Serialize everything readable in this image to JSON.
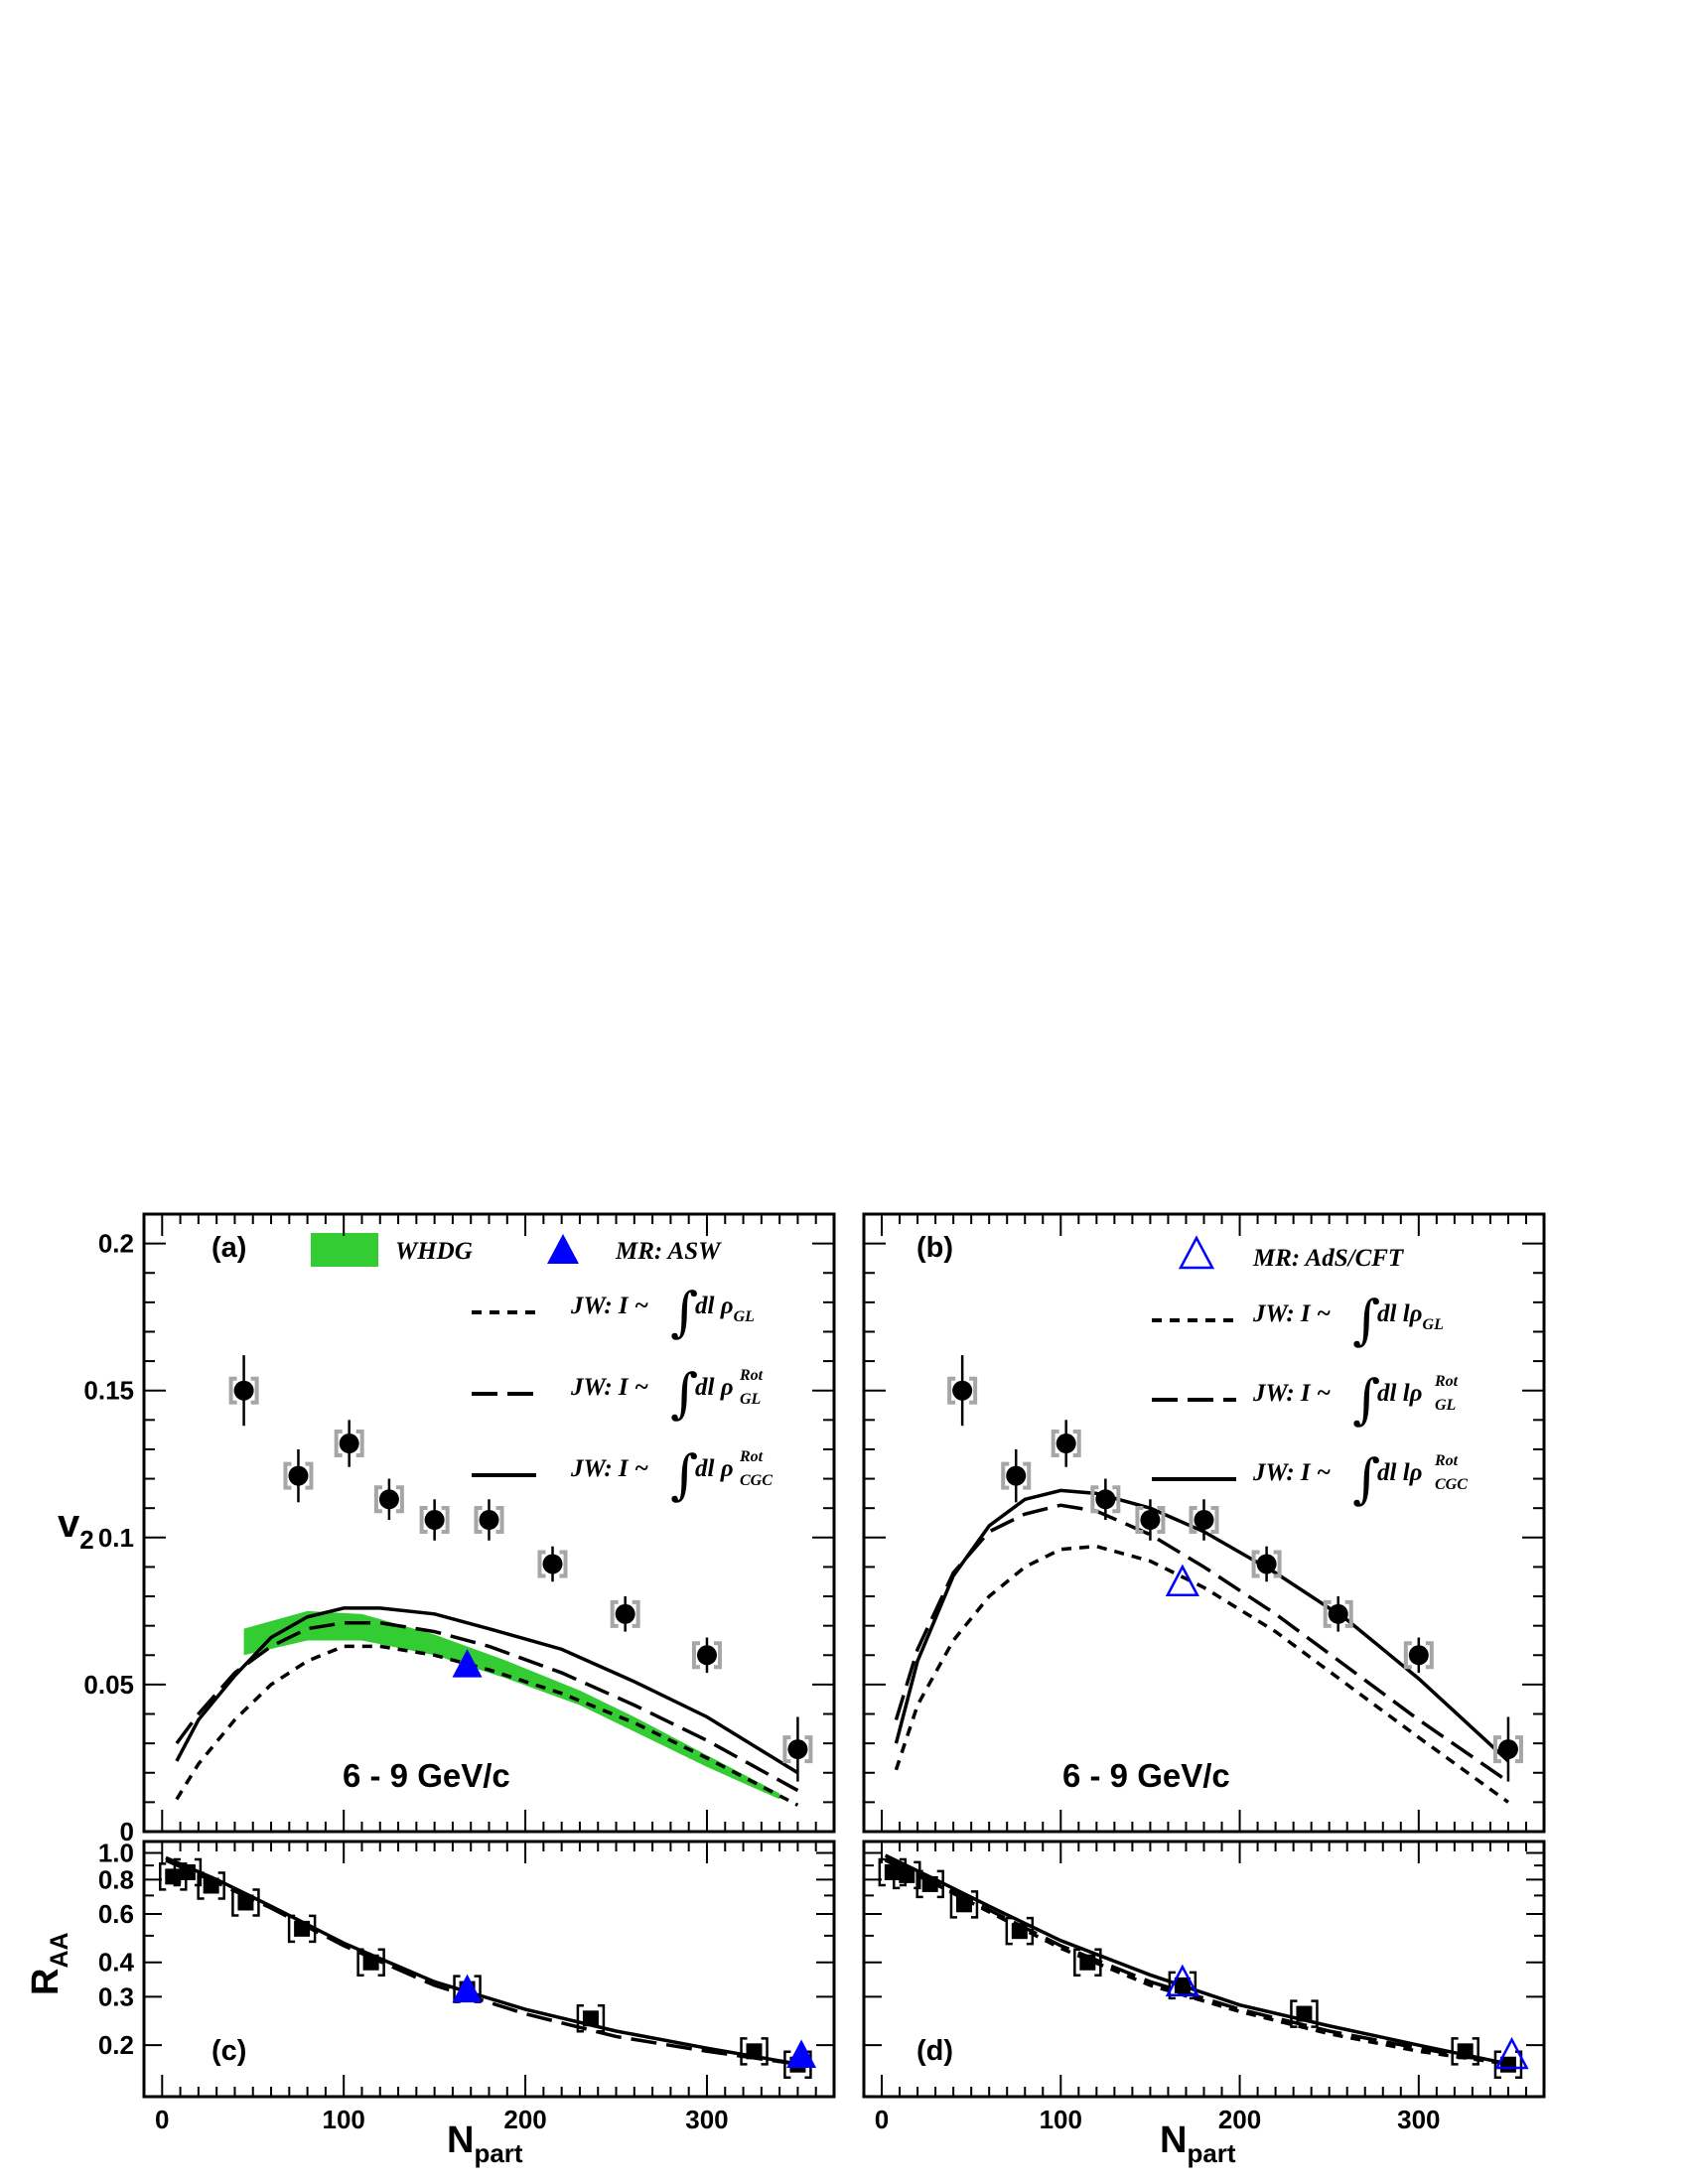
{
  "chart_data": [
    {
      "panel": "(a)",
      "type": "scatter",
      "ylabel_main": "v",
      "ylabel_sub": "2",
      "xlim": [
        -10,
        370
      ],
      "ylim": [
        0,
        0.21
      ],
      "yticks": [
        0,
        0.05,
        0.1,
        0.15,
        0.2
      ],
      "ytick_labels": [
        "0",
        "0.05",
        "0.1",
        "0.15",
        "0.2"
      ],
      "annotation": "6 - 9 GeV/c",
      "data": {
        "name": "data",
        "x": [
          45,
          75,
          103,
          125,
          150,
          180,
          215,
          255,
          300,
          350
        ],
        "y": [
          0.15,
          0.121,
          0.132,
          0.113,
          0.106,
          0.106,
          0.091,
          0.074,
          0.06,
          0.028
        ],
        "yerr": [
          0.012,
          0.009,
          0.008,
          0.007,
          0.007,
          0.007,
          0.006,
          0.006,
          0.006,
          0.011
        ],
        "color": "#000000",
        "syst_color": "#a6a6a6"
      },
      "band": {
        "name": "WHDG",
        "color": "#33cc33",
        "x": [
          45,
          80,
          110,
          150,
          190,
          230,
          260,
          300,
          340
        ],
        "lo": [
          0.06,
          0.065,
          0.065,
          0.06,
          0.052,
          0.043,
          0.034,
          0.022,
          0.011
        ],
        "hi": [
          0.069,
          0.075,
          0.074,
          0.067,
          0.058,
          0.048,
          0.039,
          0.026,
          0.013
        ]
      },
      "markers": [
        {
          "name": "MR: ASW",
          "x": [
            168
          ],
          "y": [
            0.057
          ],
          "style": "filled-triangle",
          "color": "#0000ff"
        }
      ],
      "curves": [
        {
          "name": "dashed",
          "dash": "short",
          "x": [
            8,
            20,
            40,
            60,
            80,
            100,
            120,
            150,
            180,
            220,
            260,
            300,
            350
          ],
          "y": [
            0.011,
            0.023,
            0.038,
            0.05,
            0.058,
            0.063,
            0.063,
            0.06,
            0.055,
            0.047,
            0.037,
            0.025,
            0.009
          ]
        },
        {
          "name": "long-dashed",
          "dash": "long",
          "x": [
            8,
            20,
            40,
            60,
            80,
            100,
            120,
            150,
            180,
            220,
            260,
            300,
            350
          ],
          "y": [
            0.03,
            0.04,
            0.054,
            0.063,
            0.069,
            0.071,
            0.071,
            0.068,
            0.063,
            0.054,
            0.043,
            0.031,
            0.014
          ]
        },
        {
          "name": "solid",
          "dash": "solid",
          "x": [
            8,
            20,
            40,
            60,
            80,
            100,
            120,
            150,
            180,
            220,
            260,
            300,
            350
          ],
          "y": [
            0.024,
            0.038,
            0.053,
            0.066,
            0.073,
            0.076,
            0.076,
            0.074,
            0.069,
            0.062,
            0.051,
            0.039,
            0.02
          ]
        }
      ]
    },
    {
      "panel": "(b)",
      "type": "scatter",
      "xlim": [
        -10,
        370
      ],
      "ylim": [
        0,
        0.21
      ],
      "annotation": "6 - 9 GeV/c",
      "data": {
        "name": "data",
        "x": [
          45,
          75,
          103,
          125,
          150,
          180,
          215,
          255,
          300,
          350
        ],
        "y": [
          0.15,
          0.121,
          0.132,
          0.113,
          0.106,
          0.106,
          0.091,
          0.074,
          0.06,
          0.028
        ],
        "yerr": [
          0.012,
          0.009,
          0.008,
          0.007,
          0.007,
          0.007,
          0.006,
          0.006,
          0.006,
          0.011
        ],
        "color": "#000000",
        "syst_color": "#a6a6a6"
      },
      "markers": [
        {
          "name": "MR: AdS/CFT",
          "x": [
            168
          ],
          "y": [
            0.085
          ],
          "style": "open-triangle",
          "color": "#0000ff"
        }
      ],
      "curves": [
        {
          "name": "dashed",
          "dash": "short",
          "x": [
            8,
            20,
            40,
            60,
            80,
            100,
            120,
            150,
            180,
            220,
            260,
            300,
            350
          ],
          "y": [
            0.021,
            0.043,
            0.065,
            0.08,
            0.09,
            0.096,
            0.097,
            0.092,
            0.083,
            0.068,
            0.05,
            0.032,
            0.01
          ]
        },
        {
          "name": "long-dashed",
          "dash": "long",
          "x": [
            8,
            20,
            40,
            60,
            80,
            100,
            120,
            150,
            180,
            220,
            260,
            300,
            350
          ],
          "y": [
            0.038,
            0.062,
            0.088,
            0.102,
            0.108,
            0.111,
            0.109,
            0.101,
            0.09,
            0.074,
            0.056,
            0.038,
            0.017
          ]
        },
        {
          "name": "solid",
          "dash": "solid",
          "x": [
            8,
            20,
            40,
            60,
            80,
            100,
            120,
            150,
            180,
            220,
            260,
            300,
            350
          ],
          "y": [
            0.03,
            0.058,
            0.087,
            0.104,
            0.113,
            0.116,
            0.115,
            0.11,
            0.102,
            0.088,
            0.072,
            0.052,
            0.024
          ]
        }
      ]
    },
    {
      "panel": "(c)",
      "type": "scatter",
      "ylabel_main": "R",
      "ylabel_sub": "AA",
      "xlabel_main": "N",
      "xlabel_sub": "part",
      "log_y": true,
      "xlim": [
        -10,
        370
      ],
      "ylim": [
        0.13,
        1.1
      ],
      "yticks": [
        0.2,
        0.3,
        0.4,
        0.6,
        0.8,
        1.0
      ],
      "ytick_labels": [
        "0.2",
        "0.3",
        "0.4",
        "0.6",
        "0.8",
        "1.0"
      ],
      "xticks": [
        0,
        100,
        200,
        300
      ],
      "xtick_labels": [
        "0",
        "100",
        "200",
        "300"
      ],
      "data": {
        "name": "data",
        "x": [
          6,
          14,
          27,
          46,
          77,
          115,
          168,
          236,
          326,
          350
        ],
        "y": [
          0.82,
          0.85,
          0.76,
          0.66,
          0.53,
          0.4,
          0.32,
          0.25,
          0.19,
          0.17
        ],
        "color": "#000000"
      },
      "markers": [
        {
          "name": "MR: ASW",
          "x": [
            168,
            352
          ],
          "y": [
            0.32,
            0.185
          ],
          "style": "filled-triangle",
          "color": "#0000ff"
        }
      ],
      "curves": [
        {
          "name": "solid",
          "dash": "solid",
          "x": [
            2,
            30,
            60,
            100,
            150,
            200,
            250,
            300,
            352
          ],
          "y": [
            0.96,
            0.8,
            0.64,
            0.47,
            0.34,
            0.27,
            0.225,
            0.195,
            0.17
          ]
        },
        {
          "name": "long-dashed",
          "dash": "long",
          "x": [
            2,
            30,
            60,
            100,
            150,
            200,
            250,
            300,
            352
          ],
          "y": [
            0.94,
            0.78,
            0.63,
            0.46,
            0.33,
            0.26,
            0.215,
            0.19,
            0.17
          ]
        }
      ]
    },
    {
      "panel": "(d)",
      "type": "scatter",
      "xlabel_main": "N",
      "xlabel_sub": "part",
      "log_y": true,
      "xlim": [
        -10,
        370
      ],
      "ylim": [
        0.13,
        1.1
      ],
      "data": {
        "name": "data",
        "x": [
          6,
          14,
          27,
          46,
          77,
          115,
          168,
          236,
          326,
          350
        ],
        "y": [
          0.85,
          0.83,
          0.77,
          0.65,
          0.52,
          0.4,
          0.33,
          0.26,
          0.19,
          0.17
        ],
        "color": "#000000"
      },
      "markers": [
        {
          "name": "MR: AdS/CFT",
          "x": [
            168,
            352
          ],
          "y": [
            0.34,
            0.185
          ],
          "style": "open-triangle",
          "color": "#0000ff"
        }
      ],
      "curves": [
        {
          "name": "solid",
          "dash": "solid",
          "x": [
            2,
            30,
            60,
            100,
            150,
            200,
            250,
            300,
            352
          ],
          "y": [
            0.98,
            0.8,
            0.64,
            0.48,
            0.36,
            0.28,
            0.235,
            0.2,
            0.17
          ]
        },
        {
          "name": "long-dashed",
          "dash": "long",
          "x": [
            2,
            30,
            60,
            100,
            150,
            200,
            250,
            300,
            352
          ],
          "y": [
            0.95,
            0.78,
            0.62,
            0.46,
            0.34,
            0.27,
            0.225,
            0.195,
            0.17
          ]
        },
        {
          "name": "dashed",
          "dash": "short",
          "x": [
            2,
            30,
            60,
            100,
            150,
            200,
            250,
            300,
            352
          ],
          "y": [
            0.94,
            0.77,
            0.61,
            0.45,
            0.33,
            0.265,
            0.22,
            0.19,
            0.17
          ]
        }
      ]
    }
  ],
  "legend_a": {
    "whdg": "WHDG",
    "mr": "MR: ASW",
    "jw_prefix": "JW: I ~",
    "rows": [
      {
        "dl": "dl",
        "rho": "ρ",
        "sup": "",
        "sub": "GL"
      },
      {
        "dl": "dl",
        "rho": "ρ",
        "sup": "Rot",
        "sub": "GL"
      },
      {
        "dl": "dl",
        "rho": "ρ",
        "sup": "Rot",
        "sub": "CGC"
      }
    ]
  },
  "legend_b": {
    "mr": "MR: AdS/CFT",
    "jw_prefix": "JW: I ~",
    "rows": [
      {
        "dl": "dl lρ",
        "sup": "",
        "sub": "GL"
      },
      {
        "dl": "dl lρ",
        "sup": "Rot",
        "sub": "GL"
      },
      {
        "dl": "dl lρ",
        "sup": "Rot",
        "sub": "CGC"
      }
    ]
  },
  "integral_sign": "∫"
}
